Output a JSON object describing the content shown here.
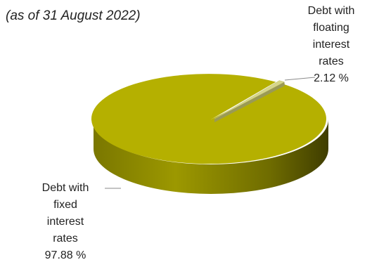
{
  "subtitle": "(as of 31 August 2022)",
  "chart_data": {
    "type": "pie",
    "style": "3d-exploded",
    "slices": [
      {
        "label_lines": [
          "Debt with",
          "floating",
          "interest",
          "rates"
        ],
        "value_text": "2.12 %",
        "value": 2.12,
        "color": "#d6d68a",
        "exploded": true
      },
      {
        "label_lines": [
          "Debt with",
          "fixed",
          "interest",
          "rates"
        ],
        "value_text": "97.88 %",
        "value": 97.88,
        "color": "#b5b000",
        "exploded": false
      }
    ]
  }
}
